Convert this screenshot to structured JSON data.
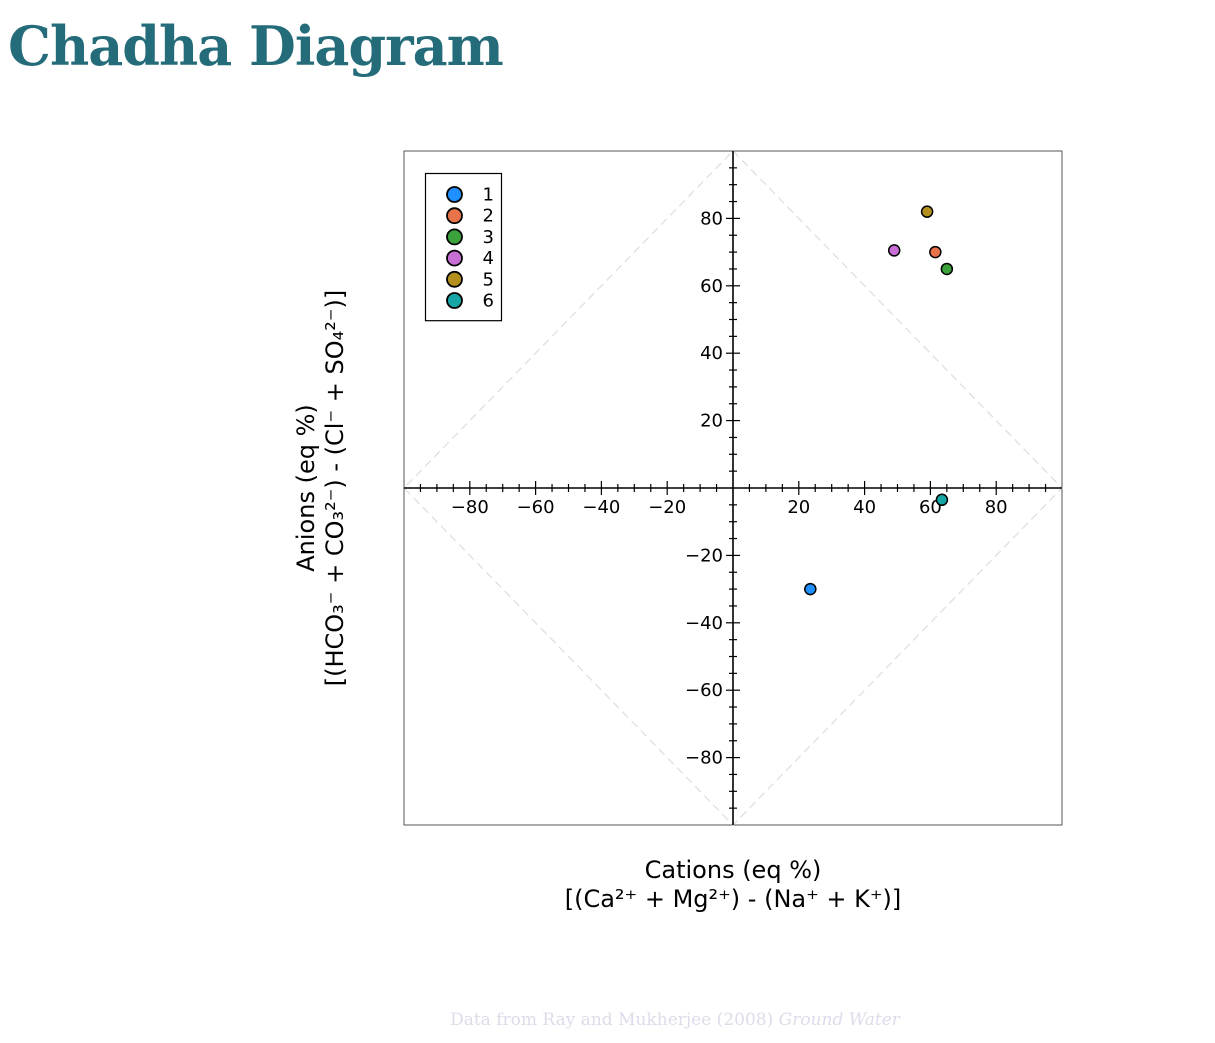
{
  "title": "Chadha Diagram",
  "credit": {
    "prefix": "Data from Ray and Mukherjee (2008) ",
    "journal": "Ground Water"
  },
  "colors": {
    "title": "#256c7a",
    "credit": "#dcdcea"
  },
  "chart_data": {
    "type": "scatter",
    "xlabel": [
      "Cations (eq %)",
      "[(Ca²⁺ + Mg²⁺) - (Na⁺ + K⁺)]"
    ],
    "ylabel": [
      "Anions (eq %)",
      "[(HCO₃⁻ + CO₃²⁻) - (Cl⁻ + SO₄²⁻)]"
    ],
    "xlim": [
      -100,
      100
    ],
    "ylim": [
      -100,
      100
    ],
    "xticks": [
      -80,
      -60,
      -40,
      -20,
      20,
      40,
      60,
      80
    ],
    "yticks": [
      80,
      60,
      40,
      20,
      -20,
      -40,
      -60,
      -80
    ],
    "legend_position": "top-left",
    "series": [
      {
        "name": "1",
        "color": "#1e90ff",
        "points": [
          [
            23.5,
            -30
          ]
        ]
      },
      {
        "name": "2",
        "color": "#e8734a",
        "points": [
          [
            61.5,
            70
          ]
        ]
      },
      {
        "name": "3",
        "color": "#3ca33c",
        "points": [
          [
            65,
            65
          ]
        ]
      },
      {
        "name": "4",
        "color": "#c86fd6",
        "points": [
          [
            49,
            70.5
          ]
        ]
      },
      {
        "name": "5",
        "color": "#b38f1e",
        "points": [
          [
            59,
            82
          ]
        ]
      },
      {
        "name": "6",
        "color": "#17a5a5",
        "points": [
          [
            63.5,
            -3.5
          ]
        ]
      }
    ]
  }
}
